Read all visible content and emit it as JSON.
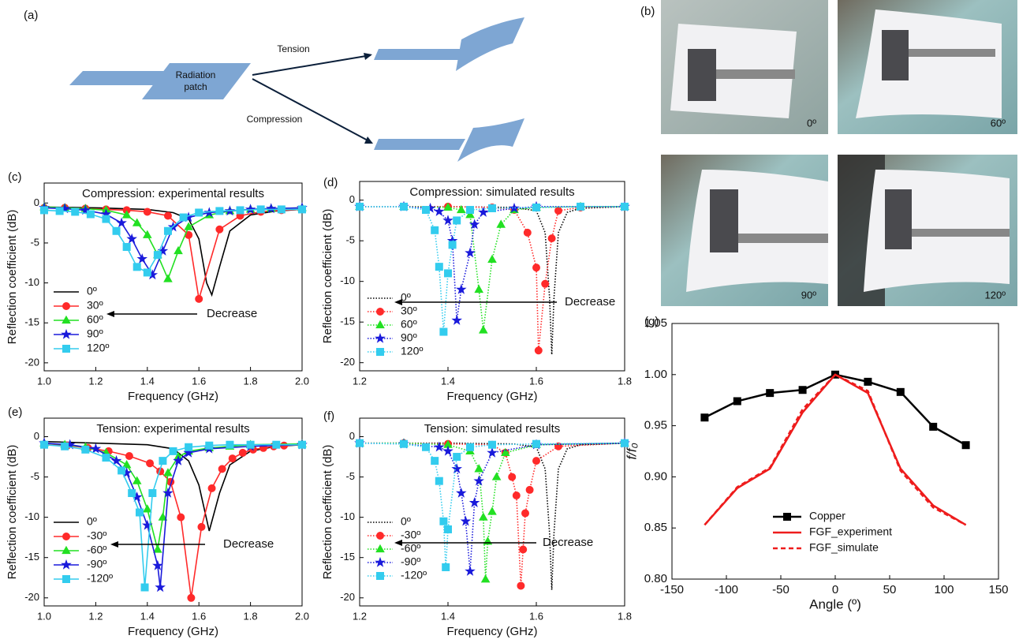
{
  "diagram": {
    "panel": "(a)",
    "patch_label": [
      "Radiation",
      "patch"
    ],
    "upper_arrow": "Tension",
    "lower_arrow": "Compression"
  },
  "photos": {
    "panel": "(b)",
    "labels": [
      "0º",
      "60º",
      "90º",
      "120º"
    ]
  },
  "chart_data": [
    {
      "type": "line",
      "panel": "(c)",
      "title": "Compression: experimental results",
      "xlabel": "Frequency (GHz)",
      "ylabel": "Reflection coefficient (dB)",
      "xlim": [
        1.0,
        2.0
      ],
      "ylim": [
        -21,
        2.5
      ],
      "xticks": [
        {
          "value": 1.0,
          "label": "1.0"
        },
        1.2,
        1.4,
        1.6,
        1.8,
        {
          "value": 2.0,
          "label": "2.0"
        }
      ],
      "yticks": [
        -20,
        -15,
        -10,
        -5,
        0
      ],
      "legend": "lower left",
      "annotation": "Decrease",
      "series": [
        {
          "name": "0º",
          "color": "#000000",
          "dash": "solid",
          "x": [
            1.0,
            1.2,
            1.4,
            1.5,
            1.56,
            1.6,
            1.63,
            1.65,
            1.68,
            1.72,
            1.8,
            1.9,
            2.0
          ],
          "values": [
            -0.5,
            -0.6,
            -0.8,
            -1.2,
            -2,
            -4.5,
            -10,
            -11.5,
            -8,
            -3.5,
            -1.5,
            -1,
            -0.8
          ]
        },
        {
          "name": "30º",
          "color": "#ff2a2a",
          "dash": "solid",
          "marker": "circle",
          "x": [
            1.0,
            1.08,
            1.16,
            1.24,
            1.32,
            1.4,
            1.48,
            1.56,
            1.6,
            1.68,
            1.76,
            1.84,
            1.92,
            2.0
          ],
          "values": [
            -0.6,
            -0.6,
            -0.7,
            -0.8,
            -0.9,
            -1.1,
            -1.6,
            -4,
            -12,
            -3.3,
            -1.6,
            -1.1,
            -0.9,
            -0.8
          ]
        },
        {
          "name": "60º",
          "color": "#22e022",
          "dash": "solid",
          "marker": "triangle",
          "x": [
            1.0,
            1.08,
            1.16,
            1.24,
            1.32,
            1.36,
            1.4,
            1.44,
            1.48,
            1.52,
            1.56,
            1.64,
            1.72,
            1.8,
            1.88,
            2.0
          ],
          "values": [
            -0.5,
            -0.6,
            -0.7,
            -0.9,
            -1.5,
            -2.5,
            -4,
            -6.5,
            -9.5,
            -6,
            -3,
            -1.5,
            -1,
            -0.8,
            -0.7,
            -0.6
          ]
        },
        {
          "name": "90º",
          "color": "#1a1adb",
          "dash": "solid",
          "marker": "star",
          "x": [
            1.0,
            1.08,
            1.16,
            1.24,
            1.3,
            1.34,
            1.38,
            1.42,
            1.46,
            1.5,
            1.56,
            1.64,
            1.72,
            1.8,
            1.88,
            2.0
          ],
          "values": [
            -0.6,
            -0.7,
            -0.9,
            -1.4,
            -2.5,
            -4.5,
            -7,
            -9,
            -6,
            -3,
            -1.8,
            -1.2,
            -1,
            -0.8,
            -0.7,
            -0.6
          ]
        },
        {
          "name": "120º",
          "color": "#33ccee",
          "dash": "solid",
          "marker": "square",
          "x": [
            1.0,
            1.06,
            1.12,
            1.18,
            1.24,
            1.28,
            1.32,
            1.36,
            1.4,
            1.44,
            1.48,
            1.54,
            1.6,
            1.68,
            1.76,
            1.84,
            1.92,
            2.0
          ],
          "values": [
            -0.9,
            -1,
            -1.1,
            -1.4,
            -2,
            -3.5,
            -5.5,
            -8,
            -8.7,
            -6.5,
            -3.5,
            -1.8,
            -1.2,
            -1,
            -0.9,
            -0.8,
            -0.8,
            -0.8
          ]
        }
      ]
    },
    {
      "type": "line",
      "panel": "(d)",
      "title": "Compression: simulated results",
      "xlabel": "Frequency (GHz)",
      "ylabel": "Reflection coefficient (dB)",
      "xlim": [
        1.2,
        1.8
      ],
      "ylim": [
        -21,
        2.3
      ],
      "xticks": [
        1.2,
        1.4,
        1.6,
        1.8
      ],
      "yticks": [
        -20,
        -15,
        -10,
        -5,
        0
      ],
      "legend": "lower left",
      "annotation": "Decrease",
      "series": [
        {
          "name": "0º",
          "color": "#000000",
          "dash": "dot",
          "x": [
            1.2,
            1.4,
            1.55,
            1.6,
            1.62,
            1.63,
            1.635,
            1.64,
            1.65,
            1.67,
            1.7,
            1.8
          ],
          "values": [
            -0.8,
            -0.8,
            -0.9,
            -1.3,
            -4,
            -12,
            -19,
            -12,
            -4,
            -1.5,
            -1,
            -0.8
          ]
        },
        {
          "name": "30º",
          "color": "#ff2a2a",
          "dash": "dot",
          "marker": "circle",
          "x": [
            1.2,
            1.3,
            1.4,
            1.5,
            1.55,
            1.58,
            1.6,
            1.605,
            1.62,
            1.635,
            1.65,
            1.7,
            1.8
          ],
          "values": [
            -0.8,
            -0.8,
            -0.8,
            -0.9,
            -1.2,
            -4,
            -8.3,
            -18.5,
            -10.3,
            -4.7,
            -1.3,
            -0.9,
            -0.8
          ]
        },
        {
          "name": "60º",
          "color": "#22e022",
          "dash": "dot",
          "marker": "triangle",
          "x": [
            1.2,
            1.3,
            1.4,
            1.43,
            1.45,
            1.47,
            1.48,
            1.5,
            1.52,
            1.55,
            1.6,
            1.7,
            1.8
          ],
          "values": [
            -0.8,
            -0.8,
            -0.9,
            -1.2,
            -1.8,
            -11,
            -16,
            -7.3,
            -3,
            -1.2,
            -0.9,
            -0.8,
            -0.8
          ]
        },
        {
          "name": "90º",
          "color": "#1a1adb",
          "dash": "dot",
          "marker": "star",
          "x": [
            1.2,
            1.3,
            1.36,
            1.38,
            1.4,
            1.41,
            1.42,
            1.43,
            1.45,
            1.46,
            1.48,
            1.55,
            1.6,
            1.8
          ],
          "values": [
            -0.8,
            -0.8,
            -1,
            -1.4,
            -2.5,
            -5,
            -14.8,
            -11,
            -6.5,
            -3,
            -1.5,
            -1,
            -0.8,
            -0.8
          ]
        },
        {
          "name": "120º",
          "color": "#33ccee",
          "dash": "dot",
          "marker": "square",
          "x": [
            1.2,
            1.3,
            1.35,
            1.37,
            1.38,
            1.39,
            1.4,
            1.41,
            1.42,
            1.45,
            1.5,
            1.6,
            1.7,
            1.8
          ],
          "values": [
            -0.8,
            -0.8,
            -1.2,
            -3.7,
            -8.2,
            -16.2,
            -9,
            -5.5,
            -2.5,
            -1.2,
            -1,
            -0.9,
            -0.8,
            -0.8
          ]
        }
      ]
    },
    {
      "type": "line",
      "panel": "(e)",
      "title": "Tension: experimental results",
      "xlabel": "Frequency (GHz)",
      "ylabel": "Reflection coefficient (dB)",
      "xlim": [
        1.0,
        2.0
      ],
      "ylim": [
        -21,
        2.3
      ],
      "xticks": [
        {
          "value": 1.0,
          "label": "1.0"
        },
        1.2,
        1.4,
        1.6,
        1.8,
        {
          "value": 2.0,
          "label": "2.0"
        }
      ],
      "yticks": [
        -20,
        -15,
        -10,
        -5,
        0
      ],
      "legend": "lower left",
      "annotation": "Decrease",
      "series": [
        {
          "name": "0º",
          "color": "#000000",
          "dash": "solid",
          "x": [
            1.0,
            1.2,
            1.4,
            1.5,
            1.56,
            1.6,
            1.64,
            1.68,
            1.72,
            1.8,
            1.9,
            2.0
          ],
          "values": [
            -0.6,
            -0.8,
            -1,
            -1.5,
            -3,
            -6,
            -11.7,
            -7,
            -3.5,
            -1.8,
            -1.2,
            -1
          ]
        },
        {
          "name": "-30º",
          "color": "#ff2a2a",
          "dash": "solid",
          "marker": "circle",
          "x": [
            1.0,
            1.09,
            1.17,
            1.25,
            1.33,
            1.41,
            1.45,
            1.49,
            1.53,
            1.57,
            1.61,
            1.65,
            1.69,
            1.73,
            1.77,
            1.81,
            1.85,
            1.89,
            1.93,
            2.0
          ],
          "values": [
            -1,
            -1.1,
            -1.4,
            -1.8,
            -2.4,
            -3.3,
            -4.3,
            -5.6,
            -10,
            -20,
            -11.2,
            -6.4,
            -4,
            -2.7,
            -2,
            -1.6,
            -1.4,
            -1.2,
            -1.1,
            -1
          ]
        },
        {
          "name": "-60º",
          "color": "#22e022",
          "dash": "solid",
          "marker": "triangle",
          "x": [
            1.0,
            1.08,
            1.16,
            1.24,
            1.32,
            1.36,
            1.4,
            1.44,
            1.46,
            1.48,
            1.52,
            1.56,
            1.64,
            1.72,
            1.8,
            2.0
          ],
          "values": [
            -0.8,
            -1,
            -1.3,
            -2,
            -3.5,
            -5.5,
            -9,
            -14,
            -10,
            -4.5,
            -2.5,
            -1.8,
            -1.4,
            -1.2,
            -1,
            -0.9
          ]
        },
        {
          "name": "-90º",
          "color": "#1a1adb",
          "dash": "solid",
          "marker": "star",
          "x": [
            1.0,
            1.1,
            1.2,
            1.28,
            1.32,
            1.36,
            1.4,
            1.44,
            1.45,
            1.48,
            1.52,
            1.56,
            1.64,
            1.8,
            2.0
          ],
          "values": [
            -0.8,
            -1,
            -1.5,
            -3,
            -4.5,
            -7.5,
            -11,
            -16,
            -18.7,
            -7,
            -3,
            -2,
            -1.5,
            -1.2,
            -1
          ]
        },
        {
          "name": "-120º",
          "color": "#33ccee",
          "dash": "solid",
          "marker": "square",
          "x": [
            1.0,
            1.08,
            1.16,
            1.24,
            1.3,
            1.34,
            1.37,
            1.39,
            1.42,
            1.46,
            1.5,
            1.56,
            1.64,
            1.72,
            1.8,
            1.9,
            2.0
          ],
          "values": [
            -1,
            -1.2,
            -1.6,
            -2.6,
            -4.2,
            -7,
            -9.4,
            -18.7,
            -7,
            -3,
            -1.8,
            -1.3,
            -1.1,
            -1,
            -1,
            -1,
            -1
          ]
        }
      ]
    },
    {
      "type": "line",
      "panel": "(f)",
      "title": "Tension: simulated results",
      "xlabel": "Frequency (GHz)",
      "ylabel": "Reflection coefficient (dB)",
      "xlim": [
        1.2,
        1.8
      ],
      "ylim": [
        -21,
        2.3
      ],
      "xticks": [
        1.2,
        1.4,
        1.6,
        1.8
      ],
      "yticks": [
        -20,
        -15,
        -10,
        -5,
        0
      ],
      "legend": "lower left",
      "annotation": "Decrease",
      "series": [
        {
          "name": "0º",
          "color": "#000000",
          "dash": "dot",
          "x": [
            1.2,
            1.4,
            1.55,
            1.6,
            1.62,
            1.63,
            1.635,
            1.64,
            1.65,
            1.67,
            1.7,
            1.8
          ],
          "values": [
            -0.8,
            -0.8,
            -0.9,
            -1.3,
            -4,
            -12,
            -19,
            -12,
            -4,
            -1.5,
            -1,
            -0.8
          ]
        },
        {
          "name": "-30º",
          "color": "#ff2a2a",
          "dash": "dot",
          "marker": "circle",
          "x": [
            1.2,
            1.3,
            1.4,
            1.5,
            1.53,
            1.545,
            1.555,
            1.565,
            1.57,
            1.575,
            1.585,
            1.6,
            1.65,
            1.8
          ],
          "values": [
            -0.8,
            -0.8,
            -0.9,
            -1,
            -2,
            -5,
            -7.3,
            -18.5,
            -14,
            -9.5,
            -6.6,
            -3,
            -1.2,
            -0.8
          ]
        },
        {
          "name": "-60º",
          "color": "#22e022",
          "dash": "dot",
          "marker": "triangle",
          "x": [
            1.2,
            1.3,
            1.4,
            1.45,
            1.47,
            1.48,
            1.485,
            1.49,
            1.5,
            1.51,
            1.53,
            1.6,
            1.8
          ],
          "values": [
            -0.8,
            -0.8,
            -1,
            -1.8,
            -4,
            -10,
            -17.7,
            -13,
            -9.3,
            -5,
            -2,
            -1,
            -0.8
          ]
        },
        {
          "name": "-90º",
          "color": "#1a1adb",
          "dash": "dot",
          "marker": "star",
          "x": [
            1.2,
            1.3,
            1.38,
            1.4,
            1.42,
            1.43,
            1.44,
            1.45,
            1.46,
            1.47,
            1.5,
            1.6,
            1.8
          ],
          "values": [
            -0.8,
            -0.9,
            -1.3,
            -1.8,
            -4,
            -7,
            -10.5,
            -16.7,
            -8.2,
            -5.5,
            -2,
            -1,
            -0.8
          ]
        },
        {
          "name": "-120º",
          "color": "#33ccee",
          "dash": "dot",
          "marker": "square",
          "x": [
            1.2,
            1.3,
            1.35,
            1.37,
            1.38,
            1.39,
            1.395,
            1.4,
            1.42,
            1.45,
            1.5,
            1.6,
            1.8
          ],
          "values": [
            -0.8,
            -0.9,
            -1.3,
            -3,
            -5.5,
            -10.5,
            -16.2,
            -11.5,
            -2.5,
            -1.3,
            -1,
            -0.9,
            -0.8
          ]
        }
      ]
    },
    {
      "type": "line",
      "panel": "(g)",
      "xlabel": "Angle (º)",
      "ylabel": "f/f₀",
      "xlim": [
        -150,
        150
      ],
      "ylim": [
        0.8,
        1.05
      ],
      "xticks": [
        -150,
        -100,
        -50,
        0,
        50,
        100,
        150
      ],
      "yticks": [
        {
          "value": 0.8,
          "label": "0.80"
        },
        0.85,
        {
          "value": 0.9,
          "label": "0.90"
        },
        0.95,
        {
          "value": 1.0,
          "label": "1.00"
        },
        1.05
      ],
      "legend": "lower center",
      "x": [
        -120,
        -90,
        -60,
        -30,
        0,
        30,
        60,
        90,
        120
      ],
      "series": [
        {
          "name": "Copper",
          "color": "#000000",
          "dash": "solid",
          "marker": "square",
          "values": [
            0.958,
            0.974,
            0.982,
            0.985,
            1.0,
            0.993,
            0.983,
            0.949,
            0.931
          ]
        },
        {
          "name": "FGF_experiment",
          "color": "#ee1c1c",
          "dash": "solid",
          "values": [
            0.853,
            0.889,
            0.908,
            0.963,
            1.0,
            0.982,
            0.908,
            0.872,
            0.853
          ]
        },
        {
          "name": "FGF_simulate",
          "color": "#ee1c1c",
          "dash": "dash",
          "values": [
            0.853,
            0.89,
            0.909,
            0.966,
            1.0,
            0.984,
            0.906,
            0.87,
            0.853
          ]
        }
      ]
    }
  ]
}
